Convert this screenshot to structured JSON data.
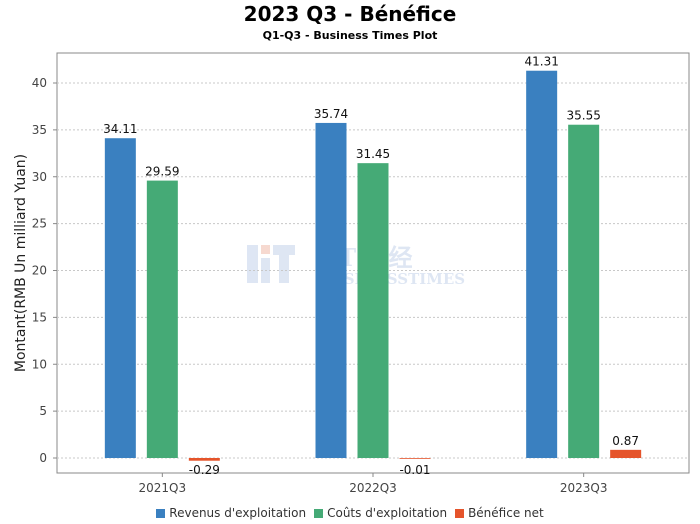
{
  "chart_data": {
    "type": "bar",
    "title": "2023 Q3 - Bénéfice",
    "subtitle": "Q1-Q3 - Business Times Plot",
    "xlabel": "",
    "ylabel": "Montant(RMB Un milliard Yuan)",
    "categories": [
      "2021Q3",
      "2022Q3",
      "2023Q3"
    ],
    "series": [
      {
        "name": "Revenus d'exploitation",
        "color": "#3a80c0",
        "values": [
          34.11,
          35.74,
          41.31
        ]
      },
      {
        "name": "Coûts d'exploitation",
        "color": "#45aa76",
        "values": [
          29.59,
          31.45,
          35.55
        ]
      },
      {
        "name": "Bénéfice net",
        "color": "#e5542b",
        "values": [
          -0.29,
          -0.01,
          0.87
        ]
      }
    ],
    "ylim": [
      -1.6,
      43.2
    ],
    "yticks": [
      0,
      5,
      10,
      15,
      20,
      25,
      30,
      35,
      40
    ],
    "grid": true,
    "legend": "bottom",
    "watermark": "BT 财经 BUSINESSTIMES"
  }
}
